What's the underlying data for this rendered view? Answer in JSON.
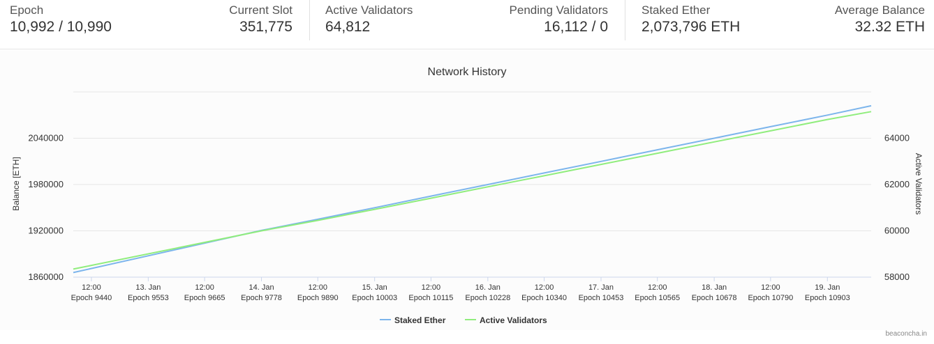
{
  "stats": [
    {
      "label": "Epoch",
      "value": "10,992 / 10,990"
    },
    {
      "label": "Current Slot",
      "value": "351,775"
    },
    {
      "label": "Active Validators",
      "value": "64,812"
    },
    {
      "label": "Pending Validators",
      "value": "16,112 / 0"
    },
    {
      "label": "Staked Ether",
      "value": "2,073,796 ETH"
    },
    {
      "label": "Average Balance",
      "value": "32.32 ETH"
    }
  ],
  "credit": "beaconcha.in",
  "chart_data": {
    "type": "line",
    "title": "Network History",
    "ylabel": "Balance [ETH]",
    "y2label": "Active Validators",
    "x_ticks": [
      {
        "date": "12:00",
        "epoch": "Epoch 9440"
      },
      {
        "date": "13. Jan",
        "epoch": "Epoch 9553"
      },
      {
        "date": "12:00",
        "epoch": "Epoch 9665"
      },
      {
        "date": "14. Jan",
        "epoch": "Epoch 9778"
      },
      {
        "date": "12:00",
        "epoch": "Epoch 9890"
      },
      {
        "date": "15. Jan",
        "epoch": "Epoch 10003"
      },
      {
        "date": "12:00",
        "epoch": "Epoch 10115"
      },
      {
        "date": "16. Jan",
        "epoch": "Epoch 10228"
      },
      {
        "date": "12:00",
        "epoch": "Epoch 10340"
      },
      {
        "date": "17. Jan",
        "epoch": "Epoch 10453"
      },
      {
        "date": "12:00",
        "epoch": "Epoch 10565"
      },
      {
        "date": "18. Jan",
        "epoch": "Epoch 10678"
      },
      {
        "date": "12:00",
        "epoch": "Epoch 10790"
      },
      {
        "date": "19. Jan",
        "epoch": "Epoch 10903"
      }
    ],
    "xlim": [
      9404,
      10990
    ],
    "ylim": [
      1860000,
      2100000
    ],
    "y_ticks": [
      "1860000",
      "1920000",
      "1980000",
      "2040000"
    ],
    "y2lim": [
      58000,
      66000
    ],
    "y2_ticks": [
      "58000",
      "60000",
      "62000",
      "64000"
    ],
    "grid": true,
    "legend": "bottom-center",
    "series": [
      {
        "name": "Staked Ether",
        "axis": "left",
        "color": "#7cb5ec",
        "x": [
          9404,
          9778,
          9890,
          10003,
          10115,
          10228,
          10340,
          10453,
          10565,
          10678,
          10790,
          10903,
          10990
        ],
        "y": [
          1866000,
          1920500,
          1935000,
          1950000,
          1965000,
          1980000,
          1995000,
          2010000,
          2025000,
          2040000,
          2055000,
          2070000,
          2082000
        ]
      },
      {
        "name": "Active Validators",
        "axis": "right",
        "color": "#90ed7d",
        "x": [
          9404,
          9778,
          9890,
          10003,
          10115,
          10228,
          10340,
          10453,
          10565,
          10678,
          10790,
          10903,
          10990
        ],
        "y": [
          58350,
          60000,
          60450,
          60930,
          61410,
          61900,
          62380,
          62870,
          63350,
          63840,
          64320,
          64810,
          65150
        ]
      }
    ]
  }
}
